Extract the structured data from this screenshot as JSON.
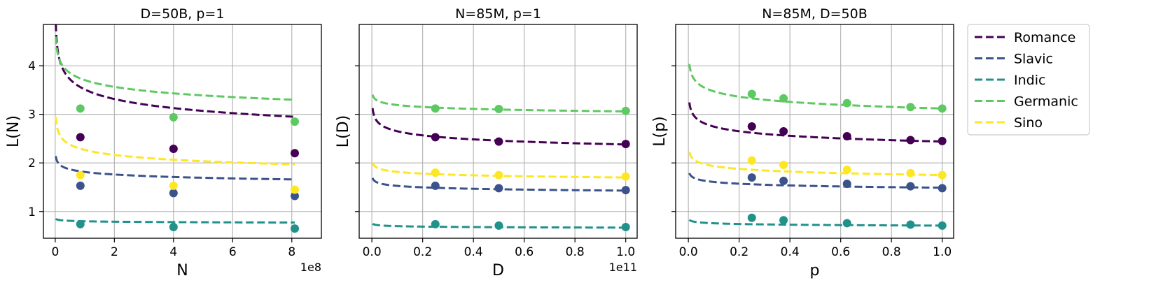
{
  "colors": {
    "Romance": "#440154",
    "Slavic": "#3b528b",
    "Indic": "#21918c",
    "Germanic": "#5ec962",
    "Sino": "#fde725",
    "grid": "#b0b0b0",
    "axis": "#000000"
  },
  "legend": {
    "placement": "right-outside-top",
    "entries": [
      "Romance",
      "Slavic",
      "Indic",
      "Germanic",
      "Sino"
    ]
  },
  "chart_data": [
    {
      "type": "line",
      "title": "D=50B, p=1",
      "xlabel": "N",
      "ylabel": "L(N)",
      "x_offset_label": "1e8",
      "xlim": [
        -0.4,
        9.0
      ],
      "ylim": [
        0.45,
        4.85
      ],
      "xticks": [
        0,
        2,
        4,
        6,
        8
      ],
      "xtick_labels": [
        "0",
        "2",
        "4",
        "6",
        "8"
      ],
      "yticks": [
        1,
        2,
        3,
        4
      ],
      "ytick_labels": [
        "1",
        "2",
        "3",
        "4"
      ],
      "ytick_labels_visible": true,
      "grid": true,
      "line_style": "dashed",
      "x_domain": [
        0.02,
        8.1
      ],
      "points_x": [
        0.85,
        4.0,
        8.1
      ],
      "series": [
        {
          "name": "Romance",
          "a": 2.95,
          "b": 0.25,
          "points_y": [
            2.53,
            2.29,
            2.2
          ]
        },
        {
          "name": "Slavic",
          "a": 1.66,
          "b": 0.127,
          "points_y": [
            1.53,
            1.38,
            1.32
          ]
        },
        {
          "name": "Indic",
          "a": 0.773,
          "b": 0.048,
          "points_y": [
            0.74,
            0.68,
            0.65
          ]
        },
        {
          "name": "Germanic",
          "a": 3.3,
          "b": 0.166,
          "points_y": [
            3.12,
            2.94,
            2.85
          ]
        },
        {
          "name": "Sino",
          "a": 1.97,
          "b": 0.202,
          "points_y": [
            1.75,
            1.53,
            1.45
          ]
        }
      ]
    },
    {
      "type": "line",
      "title": "N=85M, p=1",
      "xlabel": "D",
      "ylabel": "L(D)",
      "x_offset_label": "1e11",
      "xlim": [
        -0.05,
        1.045
      ],
      "ylim": [
        0.45,
        4.85
      ],
      "xticks": [
        0.0,
        0.2,
        0.4,
        0.6,
        0.8,
        1.0
      ],
      "xtick_labels": [
        "0.0",
        "0.2",
        "0.4",
        "0.6",
        "0.8",
        "1.0"
      ],
      "yticks": [
        1,
        2,
        3,
        4
      ],
      "ytick_labels": [
        "1",
        "2",
        "3",
        "4"
      ],
      "ytick_labels_visible": false,
      "grid": true,
      "line_style": "dashed",
      "x_domain": [
        0.003,
        1.0
      ],
      "points_x": [
        0.25,
        0.5,
        1.0
      ],
      "series": [
        {
          "name": "Romance",
          "a": 2.38,
          "b": 0.141,
          "points_y": [
            2.53,
            2.44,
            2.39
          ]
        },
        {
          "name": "Slavic",
          "a": 1.43,
          "b": 0.086,
          "points_y": [
            1.53,
            1.48,
            1.44
          ]
        },
        {
          "name": "Indic",
          "a": 0.668,
          "b": 0.059,
          "points_y": [
            0.74,
            0.71,
            0.68
          ]
        },
        {
          "name": "Germanic",
          "a": 3.06,
          "b": 0.055,
          "points_y": [
            3.12,
            3.11,
            3.07
          ]
        },
        {
          "name": "Sino",
          "a": 1.7,
          "b": 0.086,
          "points_y": [
            1.8,
            1.75,
            1.72
          ]
        }
      ]
    },
    {
      "type": "line",
      "title": "N=85M, D=50B",
      "xlabel": "p",
      "ylabel": "L(p)",
      "x_offset_label": "",
      "xlim": [
        -0.05,
        1.045
      ],
      "ylim": [
        0.45,
        4.85
      ],
      "xticks": [
        0.0,
        0.2,
        0.4,
        0.6,
        0.8,
        1.0
      ],
      "xtick_labels": [
        "0.0",
        "0.2",
        "0.4",
        "0.6",
        "0.8",
        "1.0"
      ],
      "yticks": [
        1,
        2,
        3,
        4
      ],
      "ytick_labels": [
        "1",
        "2",
        "3",
        "4"
      ],
      "ytick_labels_visible": false,
      "grid": true,
      "line_style": "dashed",
      "x_domain": [
        0.004,
        1.0
      ],
      "points_x": [
        0.25,
        0.375,
        0.625,
        0.875,
        1.0
      ],
      "series": [
        {
          "name": "Romance",
          "a": 2.44,
          "b": 0.155,
          "points_y": [
            2.75,
            2.65,
            2.55,
            2.47,
            2.45
          ]
        },
        {
          "name": "Slavic",
          "a": 1.49,
          "b": 0.1,
          "points_y": [
            1.7,
            1.63,
            1.57,
            1.52,
            1.48
          ]
        },
        {
          "name": "Indic",
          "a": 0.71,
          "b": 0.085,
          "points_y": [
            0.87,
            0.82,
            0.76,
            0.73,
            0.71
          ]
        },
        {
          "name": "Germanic",
          "a": 3.12,
          "b": 0.14,
          "points_y": [
            3.42,
            3.33,
            3.23,
            3.15,
            3.12
          ]
        },
        {
          "name": "Sino",
          "a": 1.75,
          "b": 0.131,
          "points_y": [
            2.05,
            1.96,
            1.86,
            1.79,
            1.75
          ]
        }
      ]
    }
  ]
}
